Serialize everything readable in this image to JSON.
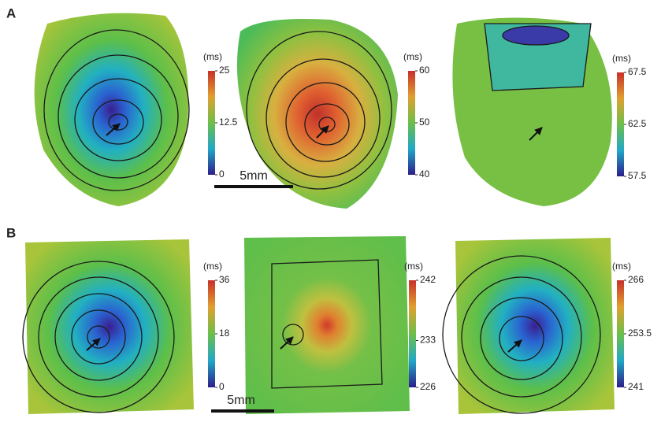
{
  "panels": [
    {
      "label": "A",
      "scale_bar": "5mm",
      "maps": [
        {
          "unit": "(ms)",
          "ticks": [
            25,
            12.5,
            0
          ]
        },
        {
          "unit": "(ms)",
          "ticks": [
            60,
            50,
            40
          ]
        },
        {
          "unit": "(ms)",
          "ticks": [
            67.5,
            62.5,
            57.5
          ]
        }
      ]
    },
    {
      "label": "B",
      "scale_bar": "5mm",
      "maps": [
        {
          "unit": "(ms)",
          "ticks": [
            36,
            18,
            0
          ]
        },
        {
          "unit": "(ms)",
          "ticks": [
            242,
            233,
            226
          ]
        },
        {
          "unit": "(ms)",
          "ticks": [
            266,
            253.5,
            241
          ]
        }
      ]
    }
  ]
}
